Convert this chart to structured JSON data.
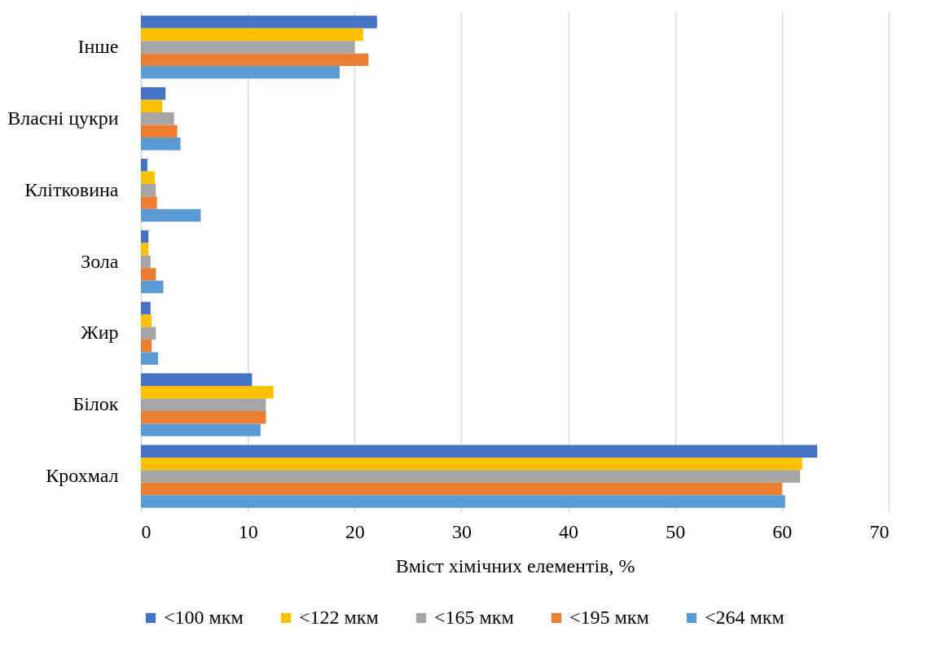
{
  "chart_data": {
    "type": "bar",
    "orientation": "horizontal",
    "xlabel": "Вміст  хімічних елементів, %",
    "categories": [
      "Інше",
      "Власні цукри",
      "Клітковина",
      "Зола",
      "Жир",
      "Білок",
      "Крохмал"
    ],
    "series": [
      {
        "name": "<100 мкм",
        "color": "#4472c4",
        "values": [
          22.1,
          2.3,
          0.6,
          0.7,
          0.9,
          10.4,
          63.3
        ]
      },
      {
        "name": "<122 мкм",
        "color": "#ffc000",
        "values": [
          20.8,
          2.0,
          1.3,
          0.7,
          1.0,
          12.4,
          61.9
        ]
      },
      {
        "name": "<165 мкм",
        "color": "#a5a5a5",
        "values": [
          20.0,
          3.1,
          1.4,
          0.9,
          1.4,
          11.7,
          61.7
        ]
      },
      {
        "name": "<195 мкм",
        "color": "#ed7d31",
        "values": [
          21.3,
          3.4,
          1.5,
          1.4,
          1.0,
          11.7,
          60.0
        ]
      },
      {
        "name": "<264 мкм",
        "color": "#5b9bd5",
        "values": [
          18.6,
          3.7,
          5.6,
          2.1,
          1.6,
          11.2,
          60.3
        ]
      }
    ],
    "xlim": [
      0,
      70
    ],
    "xticks": [
      0,
      10,
      20,
      30,
      40,
      50,
      60,
      70
    ],
    "grid": "x",
    "legend": "bottom"
  }
}
